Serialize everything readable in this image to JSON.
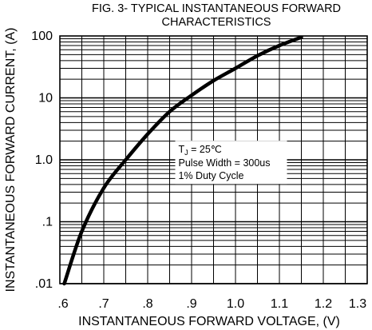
{
  "chart_data": {
    "type": "line",
    "title": "FIG. 3- TYPICAL INSTANTANEOUS FORWARD",
    "subtitle": "CHARACTERISTICS",
    "xlabel": "INSTANTANEOUS FORWARD VOLTAGE, (V)",
    "ylabel": "INSTANTANEOUS FORWARD CURRENT, (A)",
    "xlim": [
      0.6,
      1.3
    ],
    "ylim": [
      0.01,
      100
    ],
    "y_scale": "log",
    "grid": true,
    "x_ticks": [
      {
        "value": 0.6,
        "label": ".6"
      },
      {
        "value": 0.7,
        "label": ".7"
      },
      {
        "value": 0.8,
        "label": ".8"
      },
      {
        "value": 0.9,
        "label": ".9"
      },
      {
        "value": 1.0,
        "label": "1.0"
      },
      {
        "value": 1.1,
        "label": "1.1"
      },
      {
        "value": 1.2,
        "label": "1.2"
      },
      {
        "value": 1.3,
        "label": "1.3"
      }
    ],
    "y_ticks": [
      {
        "value": 100,
        "label": "100"
      },
      {
        "value": 10,
        "label": "10"
      },
      {
        "value": 1,
        "label": "1.0"
      },
      {
        "value": 0.1,
        "label": ".1"
      },
      {
        "value": 0.01,
        "label": ".01"
      }
    ],
    "series": [
      {
        "x": [
          0.61,
          0.65,
          0.7,
          0.75,
          0.8,
          0.85,
          0.9,
          0.95,
          1.0,
          1.05,
          1.1,
          1.15
        ],
        "y": [
          0.01,
          0.07,
          0.35,
          1.0,
          2.6,
          6.0,
          11,
          19,
          30,
          48,
          70,
          95
        ]
      }
    ],
    "annotation": {
      "line1": "TJ = 25℃",
      "line1_main": "T",
      "line1_sub": "J",
      "line1_rest": " = 25℃",
      "line2": "Pulse Width = 300us",
      "line3": "1% Duty Cycle",
      "anchor_x": 0.87,
      "anchor_y": 1.8
    }
  }
}
